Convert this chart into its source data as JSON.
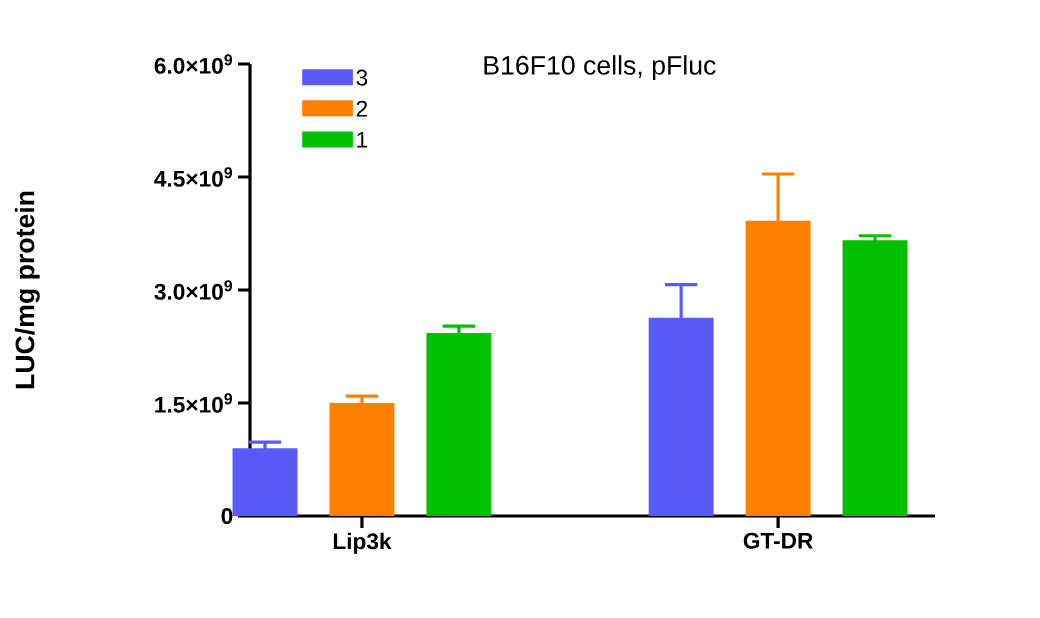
{
  "chart_data": {
    "type": "bar",
    "title": "B16F10 cells, pFluc",
    "ylabel": "LUC/mg protein",
    "categories": [
      "Lip3k",
      "GT-DR"
    ],
    "series": [
      {
        "name": "3",
        "color": "#5a5afa",
        "values": [
          900000000,
          2630000000
        ],
        "errors": [
          80000000,
          440000000
        ]
      },
      {
        "name": "2",
        "color": "#ff7f00",
        "values": [
          1500000000,
          3920000000
        ],
        "errors": [
          90000000,
          620000000
        ]
      },
      {
        "name": "1",
        "color": "#00c000",
        "values": [
          2430000000,
          3660000000
        ],
        "errors": [
          90000000,
          60000000
        ]
      }
    ],
    "ylim": [
      0,
      6000000000
    ],
    "yticks": [
      0,
      {
        "value": 1500000000,
        "label": "1.5×10$^{9}$"
      },
      {
        "value": 3000000000,
        "label": "3.0×10$^{9}$"
      },
      {
        "value": 4500000000,
        "label": "4.5×10$^{9}$"
      },
      {
        "value": 6000000000,
        "label": "6.0×10$^{9}$"
      }
    ],
    "grid": false,
    "legend": "top left"
  }
}
